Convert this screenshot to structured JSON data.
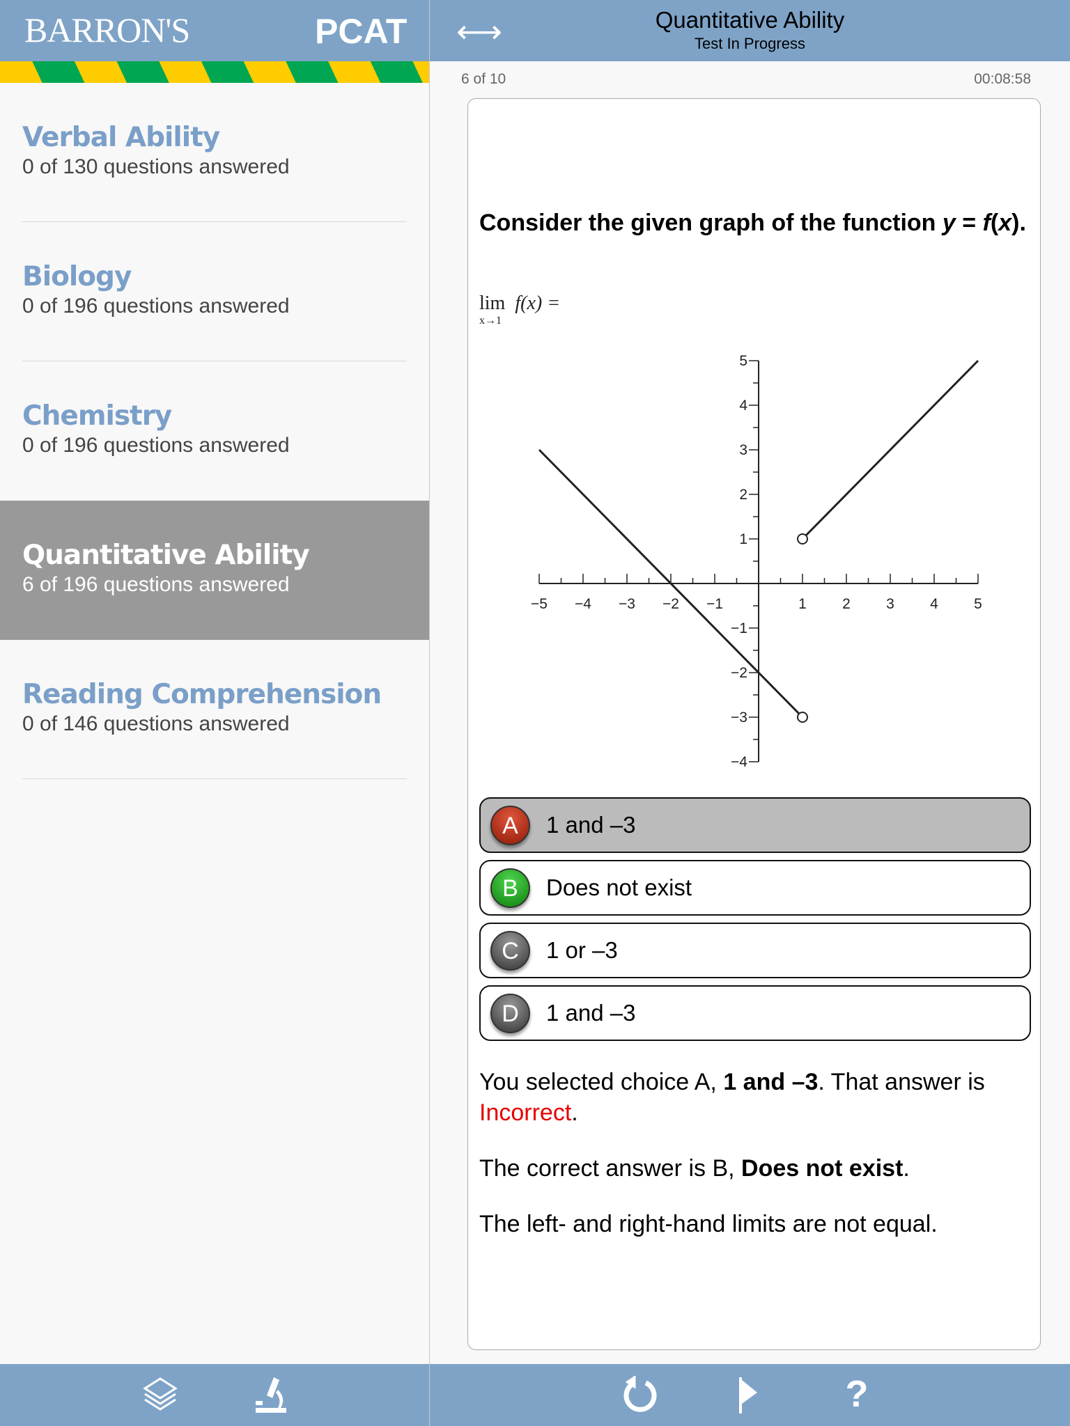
{
  "header": {
    "brand": "BARRON'S",
    "product": "PCAT",
    "title": "Quantitative Ability",
    "subtitle": "Test In Progress",
    "swap_icon": "left-right-arrow-icon"
  },
  "colors": {
    "header": "#7fa3c7",
    "stripe_yellow": "#ffcc00",
    "stripe_green": "#00a651",
    "section_title": "#7a9fc8",
    "selected_section": "#999999",
    "incorrect": "#e60000",
    "choice_a": "#b22a12",
    "choice_b": "#1ea01e",
    "choice_neutral": "#555555"
  },
  "sections": [
    {
      "title": "Verbal Ability",
      "status": "0 of 130 questions answered"
    },
    {
      "title": "Biology",
      "status": "0 of 196 questions answered"
    },
    {
      "title": "Chemistry",
      "status": "0 of 196 questions answered"
    },
    {
      "title": "Quantitative Ability",
      "status": "6 of 196 questions answered",
      "selected": true
    },
    {
      "title": "Reading Comprehension",
      "status": "0 of 146 questions answered"
    }
  ],
  "progress": {
    "counter": "6 of 10",
    "timer": "00:08:58"
  },
  "question": {
    "text_prefix": "Consider the given graph of the function ",
    "y": "y",
    "eq": " = ",
    "fx": "f",
    "x": "x",
    "suffix": ".",
    "lim": "lim",
    "lim_sub": "x→1",
    "lim_expr": "f(x) ="
  },
  "chart_data": {
    "type": "line",
    "xlim": [
      -5,
      5
    ],
    "ylim": [
      -4,
      5
    ],
    "x_ticks": [
      "−5",
      "−4",
      "−3",
      "−2",
      "−1",
      "1",
      "2",
      "3",
      "4",
      "5"
    ],
    "y_ticks": [
      "5",
      "4",
      "3",
      "2",
      "1",
      "−1",
      "−2",
      "−3",
      "−4"
    ],
    "series": [
      {
        "points": [
          [
            -5,
            3
          ],
          [
            1,
            -3
          ]
        ],
        "open_end": [
          1,
          -3
        ]
      },
      {
        "points": [
          [
            1,
            1
          ],
          [
            5,
            5
          ]
        ],
        "open_end": [
          1,
          1
        ]
      }
    ]
  },
  "choices": [
    {
      "letter": "A",
      "text": "1 and –3",
      "selected": true
    },
    {
      "letter": "B",
      "text": "Does not exist"
    },
    {
      "letter": "C",
      "text": "1 or –3"
    },
    {
      "letter": "D",
      "text": "1 and –3"
    }
  ],
  "feedback": {
    "p1_a": "You selected choice A, ",
    "p1_b": "1 and –3",
    "p1_c": ". That answer is ",
    "p1_d": "Incorrect",
    "p1_e": ".",
    "p2_a": "The correct answer is B, ",
    "p2_b": "Does not exist",
    "p2_c": ".",
    "p3": "The left- and right-hand limits are not equal."
  },
  "toolbar": {
    "left": [
      "layers-icon",
      "microscope-icon"
    ],
    "right": [
      "refresh-icon",
      "flag-icon",
      "help-icon"
    ],
    "help": "?"
  }
}
